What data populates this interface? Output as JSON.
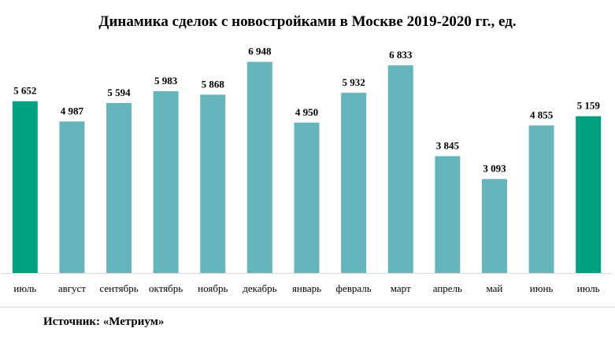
{
  "title": "Динамика сделок с новостройками в Москве 2019-2020 гг., ед.",
  "source": "Источник: «Метриум»",
  "colors": {
    "highlight": "#00a083",
    "regular": "#66b5bd",
    "axis": "#d9d9d9"
  },
  "chart_data": {
    "type": "bar",
    "title": "Динамика сделок с новостройками в Москве 2019-2020 гг., ед.",
    "xlabel": "",
    "ylabel": "",
    "ylim": [
      0,
      7300
    ],
    "grid": false,
    "legend": "none",
    "categories": [
      "июль",
      "август",
      "сентябрь",
      "октябрь",
      "ноябрь",
      "декабрь",
      "январь",
      "февраль",
      "март",
      "апрель",
      "май",
      "июнь",
      "июль"
    ],
    "values": [
      5652,
      4987,
      5594,
      5983,
      5868,
      6948,
      4950,
      5932,
      6833,
      3845,
      3093,
      4855,
      5159
    ],
    "value_labels": [
      "5 652",
      "4 987",
      "5 594",
      "5 983",
      "5 868",
      "6 948",
      "4 950",
      "5 932",
      "6 833",
      "3 845",
      "3 093",
      "4 855",
      "5 159"
    ],
    "highlighted": [
      true,
      false,
      false,
      false,
      false,
      false,
      false,
      false,
      false,
      false,
      false,
      false,
      true
    ]
  }
}
